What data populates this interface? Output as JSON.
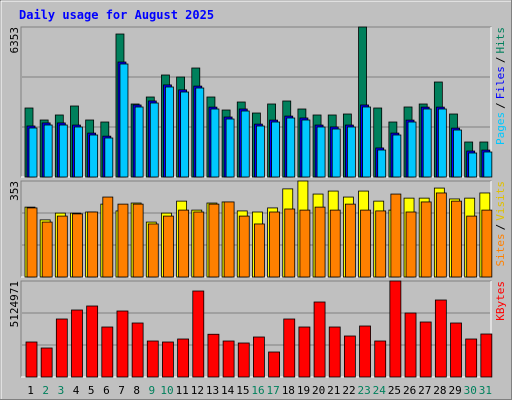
{
  "chart_data": [
    {
      "type": "bar",
      "title": "Daily usage for August 2025",
      "ylim": [
        0,
        6353
      ],
      "yticks": [
        6353
      ],
      "grid": true,
      "legend_separator": "/",
      "series": [
        {
          "name": "Hits",
          "color": "#00805c",
          "values": [
            2922,
            2414,
            2626,
            3007,
            2414,
            2329,
            6056,
            3092,
            3388,
            4320,
            4235,
            4616,
            3388,
            2837,
            3176,
            2710,
            3092,
            3219,
            2880,
            2626,
            2626,
            2668,
            6353,
            2922,
            2329,
            2965,
            3092,
            4023,
            2668,
            1482,
            1482
          ]
        },
        {
          "name": "Files",
          "color": "#0000ff",
          "values": [
            2160,
            2290,
            2290,
            2200,
            1860,
            1730,
            4870,
            3050,
            3220,
            3900,
            3690,
            3850,
            2960,
            2540,
            2880,
            2240,
            2410,
            2580,
            2500,
            2200,
            2120,
            2200,
            3050,
            1230,
            1860,
            2410,
            2960,
            2960,
            2070,
            1100,
            1140
          ]
        },
        {
          "name": "Pages",
          "color": "#00c8ff",
          "values": [
            2075,
            2202,
            2202,
            2118,
            1779,
            1652,
            4786,
            2965,
            3134,
            3812,
            3600,
            3769,
            2880,
            2456,
            2795,
            2160,
            2329,
            2499,
            2414,
            2118,
            2033,
            2118,
            2965,
            1143,
            1779,
            2329,
            2880,
            2880,
            1990,
            1016,
            1059
          ]
        }
      ]
    },
    {
      "type": "bar",
      "ylim": [
        0,
        353
      ],
      "yticks": [
        353
      ],
      "grid": true,
      "legend_separator": "/",
      "series": [
        {
          "name": "Visits",
          "color": "#ffff00",
          "values": [
            257,
            210,
            235,
            235,
            239,
            268,
            243,
            272,
            202,
            235,
            279,
            246,
            272,
            276,
            243,
            239,
            254,
            324,
            353,
            305,
            316,
            294,
            316,
            279,
            246,
            290,
            290,
            327,
            287,
            290,
            309
          ]
        },
        {
          "name": "Sites",
          "color": "#ff8000",
          "values": [
            254,
            202,
            224,
            232,
            239,
            294,
            268,
            268,
            195,
            224,
            246,
            239,
            268,
            276,
            224,
            195,
            239,
            250,
            246,
            257,
            246,
            268,
            246,
            243,
            305,
            239,
            276,
            309,
            279,
            224,
            246
          ]
        }
      ]
    },
    {
      "type": "bar",
      "ylim": [
        0,
        5124971
      ],
      "yticks": [
        5124971
      ],
      "grid": true,
      "legend_separator": "/",
      "series": [
        {
          "name": "KBytes",
          "color": "#ff0000",
          "values": [
            1868475,
            1548165,
            3096330,
            3576795,
            3790335,
            2669250,
            3523410,
            2882790,
            1921860,
            1868475,
            2028630,
            4591110,
            2282555,
            1921860,
            1815090,
            2135400,
            1334625,
            3096330,
            2669250,
            4003875,
            2669250,
            2188785,
            2722635,
            1921860,
            5124971,
            3416640,
            2936175,
            4110645,
            2882790,
            2028630,
            2295555
          ]
        }
      ],
      "categories": [
        "1",
        "2",
        "3",
        "4",
        "5",
        "6",
        "7",
        "8",
        "9",
        "10",
        "11",
        "12",
        "13",
        "14",
        "15",
        "16",
        "17",
        "18",
        "19",
        "20",
        "21",
        "22",
        "23",
        "24",
        "25",
        "26",
        "27",
        "28",
        "29",
        "30",
        "31"
      ],
      "category_colors": [
        "#000000",
        "#00805c",
        "#00805c",
        "#000000",
        "#000000",
        "#000000",
        "#000000",
        "#000000",
        "#00805c",
        "#00805c",
        "#000000",
        "#000000",
        "#000000",
        "#000000",
        "#000000",
        "#00805c",
        "#00805c",
        "#000000",
        "#000000",
        "#000000",
        "#000000",
        "#000000",
        "#00805c",
        "#00805c",
        "#000000",
        "#000000",
        "#000000",
        "#000000",
        "#000000",
        "#00805c",
        "#00805c"
      ]
    }
  ]
}
